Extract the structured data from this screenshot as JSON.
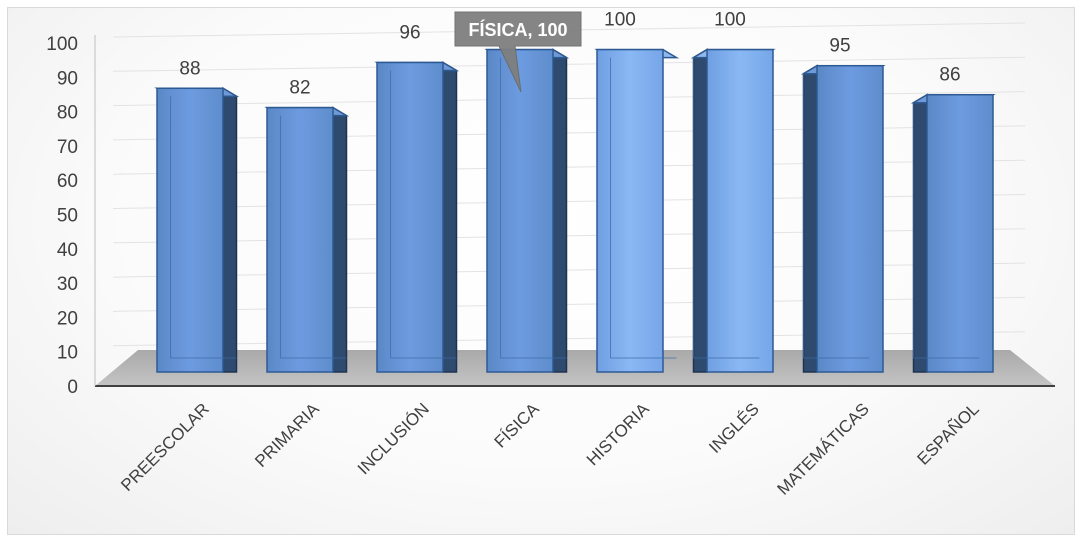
{
  "chart_data": {
    "type": "bar",
    "three_d": true,
    "categories": [
      "PREESCOLAR",
      "PRIMARIA",
      "INCLUSIÓN",
      "FÍSICA",
      "HISTORIA",
      "INGLÉS",
      "MATEMÁTICAS",
      "ESPAÑOL"
    ],
    "values": [
      88,
      82,
      96,
      100,
      100,
      100,
      95,
      86
    ],
    "title": "",
    "xlabel": "",
    "ylabel": "",
    "ylim": [
      0,
      100
    ],
    "yticks": [
      0,
      10,
      20,
      30,
      40,
      50,
      60,
      70,
      80,
      90,
      100
    ],
    "grid": true,
    "legend": "none",
    "bar_color": "#5b8fd0",
    "highlight": {
      "category_index": 3,
      "text": "FÍSICA, 100",
      "color": "#7f7f7f"
    }
  }
}
